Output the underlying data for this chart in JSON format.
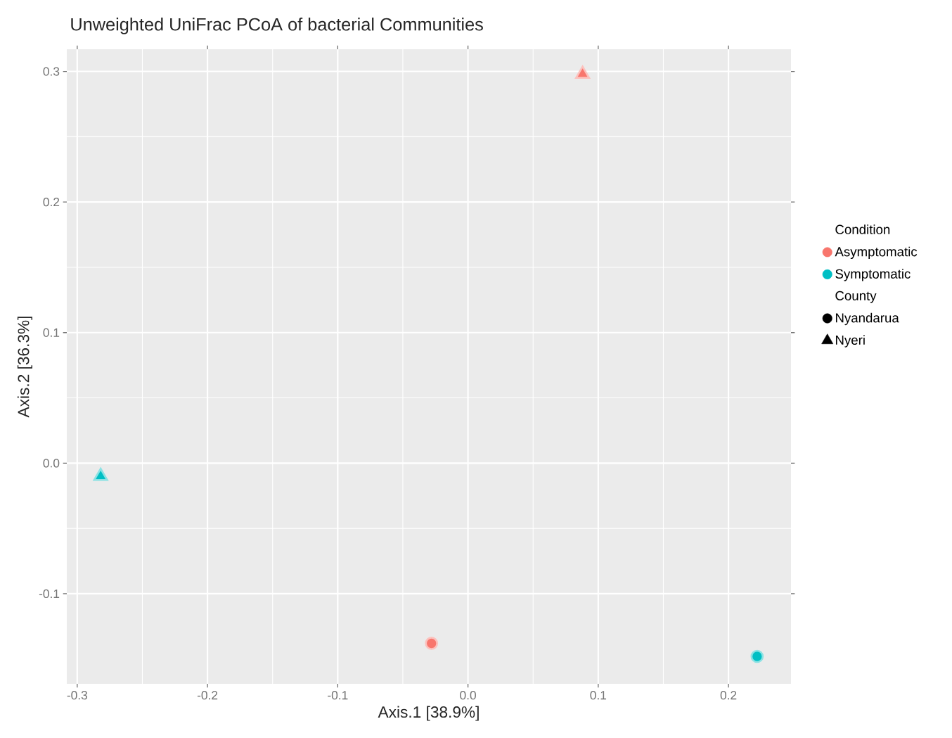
{
  "chart_data": {
    "type": "scatter",
    "title": "Unweighted UniFrac PCoA of bacterial Communities",
    "xlabel": "Axis.1   [38.9%]",
    "ylabel": "Axis.2   [36.3%]",
    "legend_title": "Condition",
    "annotations": [
      "County"
    ],
    "series": [
      {
        "name": "Asymptomatic",
        "color": "#f8766d",
        "x": [
          -0.028,
          0.088
        ],
        "values": [
          -0.138,
          0.298
        ],
        "marker": [
          "circle",
          "triangle"
        ]
      },
      {
        "name": "Symptomatic",
        "color": "#00bfc4",
        "x": [
          0.222,
          -0.282
        ],
        "values": [
          -0.148,
          -0.01
        ],
        "marker": [
          "circle",
          "triangle"
        ]
      },
      {
        "name": "Nyandarua",
        "color": "#000000",
        "marker": "circle"
      },
      {
        "name": "Nyeri",
        "color": "#000000",
        "marker": "triangle"
      }
    ],
    "xlim": [
      -0.308,
      0.248
    ],
    "ylim": [
      -0.169,
      0.317
    ],
    "xticks": [
      -0.3,
      -0.2,
      -0.1,
      {
        "value": 0,
        "label": "0.0"
      },
      0.1,
      0.2
    ],
    "yticks": [
      -0.1,
      {
        "value": 0,
        "label": "0.0"
      },
      0.1,
      0.2,
      0.3
    ],
    "grid": true,
    "legend": "right"
  }
}
